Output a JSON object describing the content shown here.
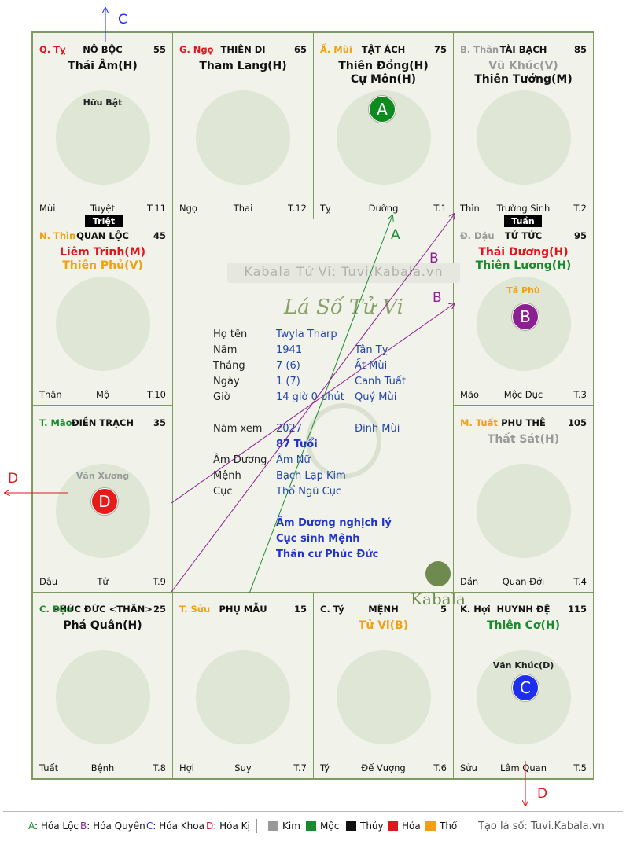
{
  "colors": {
    "kim": "#999999",
    "moc": "#1a8a2e",
    "thuy": "#111111",
    "hoa": "#e0161d",
    "tho": "#f0a012",
    "border": "#7f9a63",
    "badge_a": "#0f8a1e",
    "badge_b": "#8c1f91",
    "badge_c": "#1d2ef0",
    "badge_d": "#e81b1b"
  },
  "palaces": [
    {
      "can_chi": "Q. Tỵ",
      "can_chi_color": "#e0161d",
      "name": "NÔ BỘC",
      "age": "55",
      "stars": [
        {
          "text": "Thái Âm(H)",
          "color": "#111111"
        }
      ],
      "minor": "Hữu Bật",
      "minor_color": "#222222",
      "footer_left": "Mùi",
      "footer_mid": "Tuyệt",
      "footer_right": "T.11"
    },
    {
      "can_chi": "G. Ngọ",
      "can_chi_color": "#e0161d",
      "name": "THIÊN DI",
      "age": "65",
      "stars": [
        {
          "text": "Tham Lang(H)",
          "color": "#111111"
        }
      ],
      "minor": "",
      "footer_left": "Ngọ",
      "footer_mid": "Thai",
      "footer_right": "T.12"
    },
    {
      "can_chi": "Ấ. Mùi",
      "can_chi_color": "#f0a012",
      "name": "TẬT ÁCH",
      "age": "75",
      "stars": [
        {
          "text": "Thiên Đồng(H)",
          "color": "#111111"
        },
        {
          "text": "Cự Môn(H)",
          "color": "#111111"
        }
      ],
      "minor": "",
      "footer_left": "Tỵ",
      "footer_mid": "Dưỡng",
      "footer_right": "T.1",
      "badge": "A"
    },
    {
      "can_chi": "B. Thân",
      "can_chi_color": "#999999",
      "name": "TÀI BẠCH",
      "age": "85",
      "stars": [
        {
          "text": "Vũ Khúc(V)",
          "color": "#999999"
        },
        {
          "text": "Thiên Tướng(M)",
          "color": "#111111"
        }
      ],
      "minor": "",
      "footer_left": "Thìn",
      "footer_mid": "Trường Sinh",
      "footer_right": "T.2"
    },
    {
      "can_chi": "N. Thìn",
      "can_chi_color": "#f0a012",
      "name": "QUAN LỘC",
      "age": "45",
      "stars": [
        {
          "text": "Liêm Trinh(M)",
          "color": "#e0161d"
        },
        {
          "text": "Thiên Phủ(V)",
          "color": "#f0a012"
        }
      ],
      "minor": "",
      "footer_left": "Thân",
      "footer_mid": "Mộ",
      "footer_right": "T.10"
    },
    {
      "can_chi": "Đ. Dậu",
      "can_chi_color": "#999999",
      "name": "TỬ TỨC",
      "age": "95",
      "stars": [
        {
          "text": "Thái Dương(H)",
          "color": "#e0161d"
        },
        {
          "text": "Thiên Lương(H)",
          "color": "#1a8a2e"
        }
      ],
      "minor": "Tả Phù",
      "minor_color": "#f0a012",
      "footer_left": "Mão",
      "footer_mid": "Mộc Dục",
      "footer_right": "T.3",
      "badge": "B"
    },
    {
      "can_chi": "T. Mão",
      "can_chi_color": "#1a8a2e",
      "name": "ĐIỀN TRẠCH",
      "age": "35",
      "stars": [],
      "minor": "Văn Xương",
      "minor_color": "#999999",
      "footer_left": "Dậu",
      "footer_mid": "Tử",
      "footer_right": "T.9",
      "badge": "D"
    },
    {
      "can_chi": "M. Tuất",
      "can_chi_color": "#f0a012",
      "name": "PHU THÊ",
      "age": "105",
      "stars": [
        {
          "text": "Thất Sát(H)",
          "color": "#999999"
        }
      ],
      "minor": "",
      "footer_left": "Dần",
      "footer_mid": "Quan Đới",
      "footer_right": "T.4"
    },
    {
      "can_chi": "C. Dậu",
      "can_chi_color": "#1a8a2e",
      "name": "PHÚC ĐỨC <THÂN>",
      "age": "25",
      "stars": [
        {
          "text": "Phá Quân(H)",
          "color": "#111111"
        }
      ],
      "minor": "",
      "footer_left": "Tuất",
      "footer_mid": "Bệnh",
      "footer_right": "T.8"
    },
    {
      "can_chi": "T. Sửu",
      "can_chi_color": "#f0a012",
      "name": "PHỤ MẪU",
      "age": "15",
      "stars": [],
      "minor": "",
      "footer_left": "Hợi",
      "footer_mid": "Suy",
      "footer_right": "T.7"
    },
    {
      "can_chi": "C. Tý",
      "can_chi_color": "#111111",
      "name": "MỆNH",
      "age": "5",
      "stars": [
        {
          "text": "Tử Vi(B)",
          "color": "#f0a012"
        }
      ],
      "minor": "",
      "footer_left": "Tý",
      "footer_mid": "Đế Vượng",
      "footer_right": "T.6"
    },
    {
      "can_chi": "K. Hợi",
      "can_chi_color": "#111111",
      "name": "HUYNH ĐỆ",
      "age": "115",
      "stars": [
        {
          "text": "Thiên Cơ(H)",
          "color": "#1a8a2e"
        }
      ],
      "minor": "Văn Khúc(D)",
      "minor_color": "#222222",
      "footer_left": "Sửu",
      "footer_mid": "Lâm Quan",
      "footer_right": "T.5",
      "badge": "C"
    }
  ],
  "tags": {
    "triet": "Triệt",
    "tuan": "Tuần"
  },
  "center": {
    "watermark": "Kabala Tử Vi: Tuvi.Kabala.vn",
    "title": "Lá Số Tử Vi",
    "rows": [
      {
        "label": "Họ tên",
        "value": "Twyla Tharp",
        "extra": ""
      },
      {
        "label": "Năm",
        "value": "1941",
        "extra": "Tân Tỵ"
      },
      {
        "label": "Tháng",
        "value": "7  (6)",
        "extra": "Ất Mùi"
      },
      {
        "label": "Ngày",
        "value": "1  (7)",
        "extra": "Canh Tuất"
      },
      {
        "label": "Giờ",
        "value": "14 giờ 0 phút",
        "extra": "Quý Mùi"
      }
    ],
    "nam_xem_label": "Năm xem",
    "nam_xem_value": "2027",
    "nam_xem_extra": "Đinh Mùi",
    "tuoi": "87 Tuổi",
    "rows2": [
      {
        "label": "Âm Dương",
        "value": "Âm Nữ"
      },
      {
        "label": "Mệnh",
        "value": "Bạch Lạp Kim"
      },
      {
        "label": "Cục",
        "value": "Thổ Ngũ Cục"
      }
    ],
    "notes": [
      "Âm Dương nghịch lý",
      "Cục sinh Mệnh",
      "Thân cư Phúc Đức"
    ],
    "logo": "Kabala"
  },
  "arrow_labels": {
    "a": "A",
    "b": "B",
    "c": "C",
    "d": "D"
  },
  "legend": {
    "hoa_loc_key": "A",
    "hoa_loc": "Hóa Lộc",
    "hoa_quyen_key": "B",
    "hoa_quyen": "Hóa Quyền",
    "hoa_khoa_key": "C",
    "hoa_khoa": "Hóa Khoa",
    "hoa_ki_key": "D",
    "hoa_ki": "Hóa Kị",
    "kim": "Kim",
    "moc": "Mộc",
    "thuy": "Thủy",
    "hoa": "Hỏa",
    "tho": "Thổ",
    "site": "Tạo lá số: Tuvi.Kabala.vn"
  }
}
